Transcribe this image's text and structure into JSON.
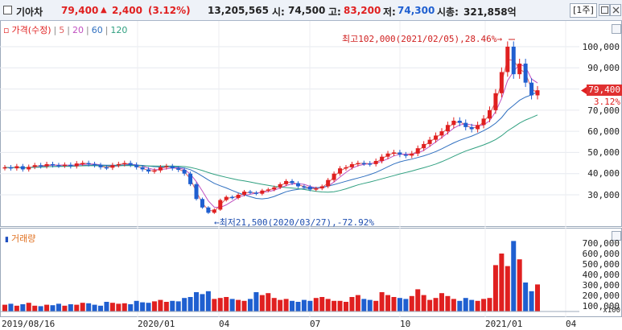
{
  "header": {
    "name": "기아차",
    "price": "79,400",
    "change_arrow": "▲",
    "change": "2,400",
    "change_pct": "(3.12%)",
    "volume": "13,205,565",
    "open_label": "시:",
    "open": "74,500",
    "high_label": "고:",
    "high": "83,200",
    "low_label": "저:",
    "low": "74,300",
    "mcap_label": "시총:",
    "mcap": "321,858억",
    "unit": "[1주]"
  },
  "price_panel": {
    "legend_box": "▫",
    "legend_main": "가격(수정)",
    "ma": [
      {
        "label": "5",
        "color": "#e06060"
      },
      {
        "label": "20",
        "color": "#c050c0"
      },
      {
        "label": "60",
        "color": "#3070c0"
      },
      {
        "label": "120",
        "color": "#30a080"
      }
    ],
    "high_annotation": "최고102,000(2021/02/05),28.46%→",
    "low_annotation": "←최저21,500(2020/03/27),-72.92%",
    "last_price_tag": "79,400",
    "last_pct_tag": "3.12%",
    "yticks": [
      "100,000",
      "90,000",
      "80,000",
      "70,000",
      "60,000",
      "50,000",
      "40,000",
      "30,000"
    ]
  },
  "volume_panel": {
    "legend": "거래량",
    "yticks": [
      "700,000",
      "600,000",
      "500,000",
      "400,000",
      "300,000",
      "200,000",
      "100,000"
    ],
    "unit": "x100"
  },
  "x_axis": [
    "2019/08/16",
    "2020/01",
    "04",
    "07",
    "10",
    "2021/01",
    "04"
  ],
  "colors": {
    "up": "#e02020",
    "down": "#1f5fd0",
    "panel_border": "#9ca9bb"
  },
  "chart_data": {
    "type": "candlestick",
    "weekly_close": [
      43000,
      42500,
      43500,
      42000,
      43200,
      44000,
      43500,
      44500,
      44000,
      43800,
      44200,
      43500,
      44800,
      45000,
      44500,
      44000,
      43000,
      42800,
      44000,
      44500,
      45000,
      44200,
      43000,
      42000,
      41000,
      41500,
      43000,
      43500,
      42500,
      41800,
      40000,
      35000,
      28000,
      24000,
      21500,
      23000,
      27500,
      29000,
      28500,
      30000,
      31500,
      31000,
      30500,
      32000,
      32500,
      33500,
      35000,
      36500,
      35500,
      34000,
      33800,
      32500,
      33000,
      34000,
      37000,
      40000,
      42500,
      43000,
      44500,
      45000,
      44800,
      44500,
      46000,
      48000,
      49500,
      50000,
      49000,
      48500,
      49500,
      52000,
      54000,
      56000,
      58000,
      60000,
      63000,
      65000,
      64000,
      62000,
      61000,
      63000,
      66000,
      70000,
      78000,
      88000,
      100000,
      87000,
      92000,
      83000,
      77000,
      79400
    ],
    "weekly_volume": [
      70000,
      80000,
      60000,
      75000,
      90000,
      60000,
      55000,
      70000,
      65000,
      80000,
      60000,
      75000,
      70000,
      90000,
      85000,
      70000,
      60000,
      100000,
      90000,
      80000,
      85000,
      75000,
      110000,
      95000,
      90000,
      105000,
      120000,
      100000,
      110000,
      105000,
      140000,
      150000,
      200000,
      180000,
      210000,
      130000,
      140000,
      150000,
      130000,
      120000,
      110000,
      130000,
      200000,
      170000,
      190000,
      140000,
      120000,
      130000,
      110000,
      100000,
      120000,
      110000,
      140000,
      150000,
      130000,
      110000,
      110000,
      100000,
      150000,
      170000,
      130000,
      120000,
      110000,
      200000,
      170000,
      150000,
      140000,
      130000,
      160000,
      230000,
      170000,
      120000,
      140000,
      190000,
      160000,
      130000,
      110000,
      140000,
      120000,
      110000,
      130000,
      140000,
      480000,
      600000,
      470000,
      730000,
      540000,
      300000,
      210000,
      280000
    ]
  }
}
